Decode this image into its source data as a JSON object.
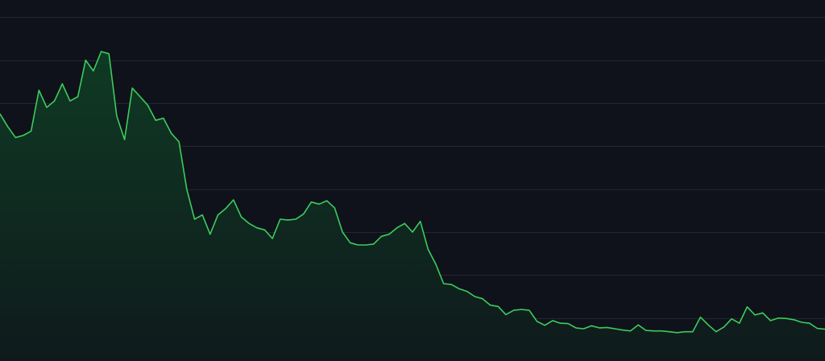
{
  "colors": {
    "background": "#0f121a",
    "grid": "#222733",
    "line": "#3ccc5c",
    "area_top": "#0f3a24",
    "area_bottom": "#0f1a1c"
  },
  "chart_data": {
    "type": "area",
    "title": "",
    "xlabel": "",
    "ylabel": "",
    "grid": true,
    "legend": "none",
    "xlim": [
      0,
      106
    ],
    "ylim": [
      0,
      8.4
    ],
    "gridlines": [
      1,
      2,
      3,
      4,
      5,
      6,
      7,
      8
    ],
    "series": [
      {
        "values": [
          5.75,
          5.45,
          5.2,
          5.25,
          5.35,
          6.3,
          5.9,
          6.05,
          6.45,
          6.05,
          6.15,
          7.0,
          6.75,
          7.2,
          7.15,
          5.7,
          5.15,
          6.35,
          6.15,
          5.95,
          5.6,
          5.65,
          5.3,
          5.1,
          4.0,
          3.3,
          3.4,
          2.95,
          3.4,
          3.55,
          3.75,
          3.35,
          3.2,
          3.1,
          3.05,
          2.85,
          3.3,
          3.28,
          3.3,
          3.42,
          3.7,
          3.65,
          3.73,
          3.56,
          3.0,
          2.75,
          2.7,
          2.7,
          2.72,
          2.9,
          2.95,
          3.1,
          3.2,
          3.0,
          3.25,
          2.6,
          2.25,
          1.8,
          1.78,
          1.68,
          1.62,
          1.5,
          1.45,
          1.3,
          1.27,
          1.08,
          1.18,
          1.2,
          1.18,
          0.92,
          0.83,
          0.94,
          0.88,
          0.87,
          0.77,
          0.75,
          0.82,
          0.77,
          0.78,
          0.75,
          0.72,
          0.7,
          0.84,
          0.71,
          0.7,
          0.7,
          0.68,
          0.66,
          0.68,
          0.68,
          1.02,
          0.84,
          0.68,
          0.79,
          0.98,
          0.88,
          1.26,
          1.07,
          1.12,
          0.94,
          1.0,
          0.99,
          0.96,
          0.9,
          0.88,
          0.76,
          0.74
        ]
      }
    ]
  }
}
